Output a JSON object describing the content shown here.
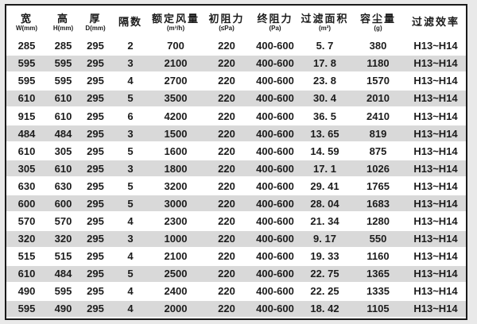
{
  "colors": {
    "page_background": "#e9e9e9",
    "table_background": "#ffffff",
    "row_stripe": "#d9d9d9",
    "frame_border": "#1a1a1a",
    "text": "#1c1c1c"
  },
  "table": {
    "columns": [
      {
        "title": "宽",
        "unit": "W(mm)"
      },
      {
        "title": "高",
        "unit": "H(mm)"
      },
      {
        "title": "厚",
        "unit": "D(mm)"
      },
      {
        "title": "隔数",
        "unit": ""
      },
      {
        "title": "额定风量",
        "unit": "(m³/h)"
      },
      {
        "title": "初阻力",
        "unit": "(≤Pa)"
      },
      {
        "title": "终阻力",
        "unit": "(Pa)"
      },
      {
        "title": "过滤面积",
        "unit": "(m²)"
      },
      {
        "title": "容尘量",
        "unit": "(g)"
      },
      {
        "title": "过滤效率",
        "unit": ""
      }
    ],
    "rows": [
      [
        "285",
        "285",
        "295",
        "2",
        "700",
        "220",
        "400-600",
        "5. 7",
        "380",
        "H13~H14"
      ],
      [
        "595",
        "595",
        "295",
        "3",
        "2100",
        "220",
        "400-600",
        "17. 8",
        "1180",
        "H13~H14"
      ],
      [
        "595",
        "595",
        "295",
        "4",
        "2700",
        "220",
        "400-600",
        "23. 8",
        "1570",
        "H13~H14"
      ],
      [
        "610",
        "610",
        "295",
        "5",
        "3500",
        "220",
        "400-600",
        "30. 4",
        "2010",
        "H13~H14"
      ],
      [
        "915",
        "610",
        "295",
        "6",
        "4200",
        "220",
        "400-600",
        "36. 5",
        "2410",
        "H13~H14"
      ],
      [
        "484",
        "484",
        "295",
        "3",
        "1500",
        "220",
        "400-600",
        "13. 65",
        "819",
        "H13~H14"
      ],
      [
        "610",
        "305",
        "295",
        "5",
        "1600",
        "220",
        "400-600",
        "14. 59",
        "875",
        "H13~H14"
      ],
      [
        "305",
        "610",
        "295",
        "3",
        "1800",
        "220",
        "400-600",
        "17. 1",
        "1026",
        "H13~H14"
      ],
      [
        "630",
        "630",
        "295",
        "5",
        "3200",
        "220",
        "400-600",
        "29. 41",
        "1765",
        "H13~H14"
      ],
      [
        "600",
        "600",
        "295",
        "5",
        "3000",
        "220",
        "400-600",
        "28. 04",
        "1683",
        "H13~H14"
      ],
      [
        "570",
        "570",
        "295",
        "4",
        "2300",
        "220",
        "400-600",
        "21. 34",
        "1280",
        "H13~H14"
      ],
      [
        "320",
        "320",
        "295",
        "3",
        "1000",
        "220",
        "400-600",
        "9. 17",
        "550",
        "H13~H14"
      ],
      [
        "515",
        "515",
        "295",
        "4",
        "2100",
        "220",
        "400-600",
        "19. 33",
        "1160",
        "H13~H14"
      ],
      [
        "610",
        "484",
        "295",
        "5",
        "2500",
        "220",
        "400-600",
        "22. 75",
        "1365",
        "H13~H14"
      ],
      [
        "490",
        "595",
        "295",
        "4",
        "2400",
        "220",
        "400-600",
        "22. 25",
        "1335",
        "H13~H14"
      ],
      [
        "595",
        "490",
        "295",
        "4",
        "2000",
        "220",
        "400-600",
        "18. 42",
        "1105",
        "H13~H14"
      ]
    ]
  }
}
